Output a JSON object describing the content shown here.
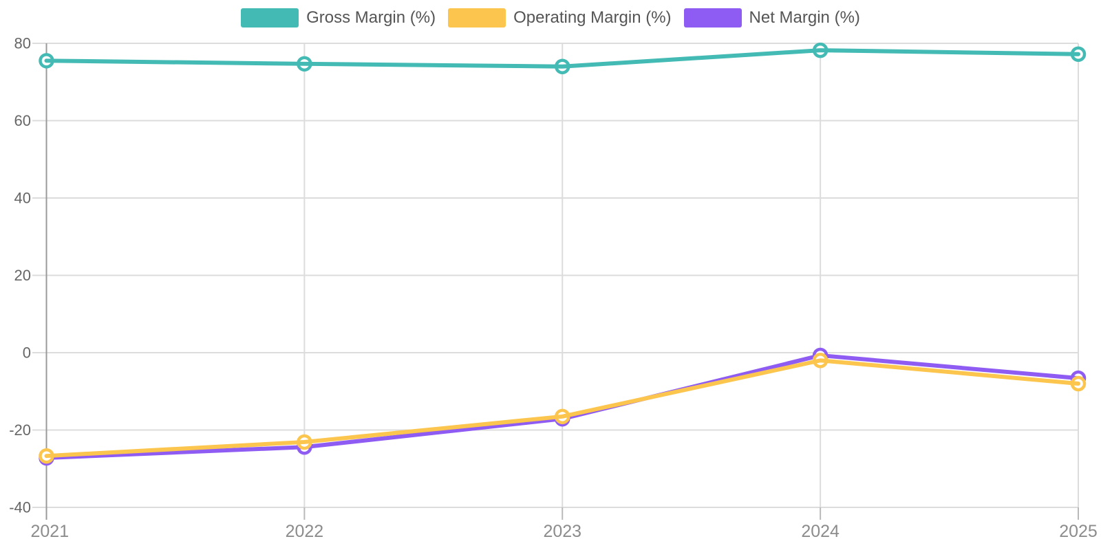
{
  "chart_data": {
    "type": "line",
    "title": "",
    "xlabel": "",
    "ylabel": "",
    "categories": [
      "2021",
      "2022",
      "2023",
      "2024",
      "2025"
    ],
    "series": [
      {
        "name": "Gross Margin (%)",
        "color": "#44bab4",
        "values": [
          75.5,
          74.7,
          74.0,
          78.2,
          77.2
        ]
      },
      {
        "name": "Operating Margin (%)",
        "color": "#fcc54e",
        "values": [
          -26.7,
          -23.1,
          -16.5,
          -2.0,
          -8.0
        ]
      },
      {
        "name": "Net Margin (%)",
        "color": "#8e5cf2",
        "values": [
          -27.2,
          -24.4,
          -17.1,
          -0.7,
          -6.6
        ]
      }
    ],
    "ylim": [
      -40,
      80
    ],
    "yticks": [
      80,
      60,
      40,
      20,
      0,
      -20,
      -40
    ],
    "grid": true,
    "legend_position": "top"
  },
  "colors": {
    "background": "#ffffff",
    "gridline": "#dcdcdc",
    "axis_line": "#9a9a9a",
    "x_tick": "#b9b9b9",
    "y_tick_label": "#666666",
    "x_tick_label": "#8c8c8c",
    "legend_text": "#555555"
  }
}
